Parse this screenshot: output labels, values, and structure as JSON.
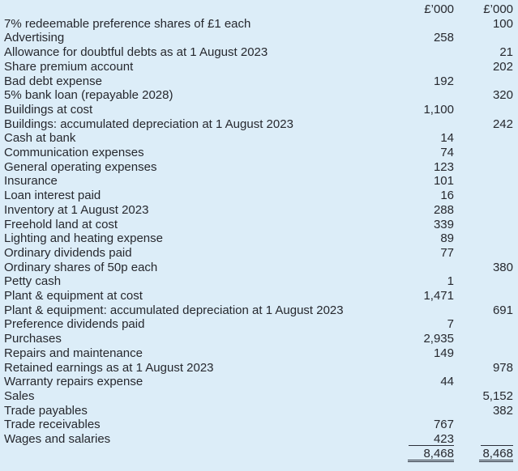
{
  "document_type": "trial-balance-table",
  "colors": {
    "background": "#dcedf8",
    "text": "#26282e",
    "rule": "#2b2f3a"
  },
  "table": {
    "header": {
      "label": "",
      "debit": "£’000",
      "credit": "£’000"
    },
    "rows": [
      {
        "label": "7% redeemable preference shares of £1 each",
        "debit": "",
        "credit": "100"
      },
      {
        "label": "Advertising",
        "debit": "258",
        "credit": ""
      },
      {
        "label": "Allowance for doubtful debts as at 1 August 2023",
        "debit": "",
        "credit": "21"
      },
      {
        "label": "Share premium account",
        "debit": "",
        "credit": "202"
      },
      {
        "label": "Bad debt expense",
        "debit": "192",
        "credit": ""
      },
      {
        "label": "5% bank loan (repayable 2028)",
        "debit": "",
        "credit": "320"
      },
      {
        "label": "Buildings at cost",
        "debit": "1,100",
        "credit": ""
      },
      {
        "label": "Buildings: accumulated depreciation at 1 August 2023",
        "debit": "",
        "credit": "242"
      },
      {
        "label": "Cash at bank",
        "debit": "14",
        "credit": ""
      },
      {
        "label": "Communication expenses",
        "debit": "74",
        "credit": ""
      },
      {
        "label": "General operating expenses",
        "debit": "123",
        "credit": ""
      },
      {
        "label": "Insurance",
        "debit": "101",
        "credit": ""
      },
      {
        "label": "Loan interest paid",
        "debit": "16",
        "credit": ""
      },
      {
        "label": "Inventory at 1 August 2023",
        "debit": "288",
        "credit": ""
      },
      {
        "label": "Freehold land at cost",
        "debit": "339",
        "credit": ""
      },
      {
        "label": "Lighting and heating expense",
        "debit": "89",
        "credit": ""
      },
      {
        "label": "Ordinary dividends paid",
        "debit": "77",
        "credit": ""
      },
      {
        "label": "Ordinary shares of 50p each",
        "debit": "",
        "credit": "380"
      },
      {
        "label": "Petty cash",
        "debit": "1",
        "credit": ""
      },
      {
        "label": "Plant & equipment at cost",
        "debit": "1,471",
        "credit": ""
      },
      {
        "label": "Plant & equipment: accumulated depreciation at 1 August 2023",
        "debit": "",
        "credit": "691"
      },
      {
        "label": "Preference dividends paid",
        "debit": "7",
        "credit": ""
      },
      {
        "label": "Purchases",
        "debit": "2,935",
        "credit": ""
      },
      {
        "label": "Repairs and maintenance",
        "debit": "149",
        "credit": ""
      },
      {
        "label": "Retained earnings as at 1 August 2023",
        "debit": "",
        "credit": "978"
      },
      {
        "label": "Warranty repairs expense",
        "debit": "44",
        "credit": ""
      },
      {
        "label": "Sales",
        "debit": "",
        "credit": "5,152"
      },
      {
        "label": "Trade payables",
        "debit": "",
        "credit": "382"
      },
      {
        "label": "Trade receivables",
        "debit": "767",
        "credit": ""
      },
      {
        "label": "Wages and salaries",
        "debit": "423",
        "credit": ""
      }
    ],
    "rule_under_last_row": true,
    "totals": {
      "label": "",
      "debit": "8,468",
      "credit": "8,468"
    }
  }
}
